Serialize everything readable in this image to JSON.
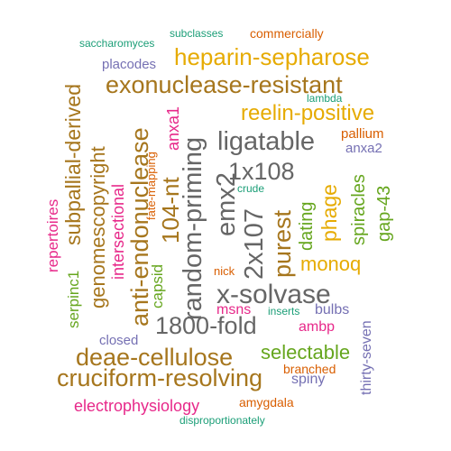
{
  "words": [
    {
      "text": "subclasses",
      "color": "#1b9e77",
      "rotated": false
    },
    {
      "text": "commercially",
      "color": "#d95f02",
      "rotated": false
    },
    {
      "text": "saccharomyces",
      "color": "#1b9e77",
      "rotated": false
    },
    {
      "text": "placodes",
      "color": "#7570b3",
      "rotated": false
    },
    {
      "text": "heparin-sepharose",
      "color": "#e6ab02",
      "rotated": false
    },
    {
      "text": "exonuclease-resistant",
      "color": "#a6761d",
      "rotated": false
    },
    {
      "text": "lambda",
      "color": "#1b9e77",
      "rotated": false
    },
    {
      "text": "reelin-positive",
      "color": "#e6ab02",
      "rotated": false
    },
    {
      "text": "pallium",
      "color": "#d95f02",
      "rotated": false
    },
    {
      "text": "ligatable",
      "color": "#666666",
      "rotated": false
    },
    {
      "text": "anxa2",
      "color": "#7570b3",
      "rotated": false
    },
    {
      "text": "1x108",
      "color": "#666666",
      "rotated": false
    },
    {
      "text": "crude",
      "color": "#1b9e77",
      "rotated": false
    },
    {
      "text": "monoq",
      "color": "#e6ab02",
      "rotated": false
    },
    {
      "text": "nick",
      "color": "#d95f02",
      "rotated": false
    },
    {
      "text": "x-solvase",
      "color": "#666666",
      "rotated": false
    },
    {
      "text": "msns",
      "color": "#e7298a",
      "rotated": false
    },
    {
      "text": "inserts",
      "color": "#1b9e77",
      "rotated": false
    },
    {
      "text": "bulbs",
      "color": "#7570b3",
      "rotated": false
    },
    {
      "text": "1800-fold",
      "color": "#666666",
      "rotated": false
    },
    {
      "text": "ambp",
      "color": "#e7298a",
      "rotated": false
    },
    {
      "text": "closed",
      "color": "#7570b3",
      "rotated": false
    },
    {
      "text": "deae-cellulose",
      "color": "#a6761d",
      "rotated": false
    },
    {
      "text": "selectable",
      "color": "#66a61e",
      "rotated": false
    },
    {
      "text": "cruciform-resolving",
      "color": "#a6761d",
      "rotated": false
    },
    {
      "text": "branched",
      "color": "#d95f02",
      "rotated": false
    },
    {
      "text": "spiny",
      "color": "#7570b3",
      "rotated": false
    },
    {
      "text": "electrophysiology",
      "color": "#e7298a",
      "rotated": false
    },
    {
      "text": "amygdala",
      "color": "#d95f02",
      "rotated": false
    },
    {
      "text": "disproportionately",
      "color": "#1b9e77",
      "rotated": false
    },
    {
      "text": "random-priming",
      "color": "#666666",
      "rotated": true
    },
    {
      "text": "anti-endonuclease",
      "color": "#a6761d",
      "rotated": true
    },
    {
      "text": "subpallial-derived",
      "color": "#a6761d",
      "rotated": true
    },
    {
      "text": "genomescopyright",
      "color": "#a6761d",
      "rotated": true
    },
    {
      "text": "intersectional",
      "color": "#e7298a",
      "rotated": true
    },
    {
      "text": "104-nt",
      "color": "#a6761d",
      "rotated": true
    },
    {
      "text": "anxa1",
      "color": "#e7298a",
      "rotated": true
    },
    {
      "text": "fate-mapping",
      "color": "#d95f02",
      "rotated": true
    },
    {
      "text": "emx2",
      "color": "#666666",
      "rotated": true
    },
    {
      "text": "2x107",
      "color": "#666666",
      "rotated": true
    },
    {
      "text": "purest",
      "color": "#a6761d",
      "rotated": true
    },
    {
      "text": "dating",
      "color": "#66a61e",
      "rotated": true
    },
    {
      "text": "phage",
      "color": "#e6ab02",
      "rotated": true
    },
    {
      "text": "spiracles",
      "color": "#66a61e",
      "rotated": true
    },
    {
      "text": "gap-43",
      "color": "#66a61e",
      "rotated": true
    },
    {
      "text": "repertoires",
      "color": "#e7298a",
      "rotated": true
    },
    {
      "text": "serpinc1",
      "color": "#66a61e",
      "rotated": true
    },
    {
      "text": "capsid",
      "color": "#66a61e",
      "rotated": true
    },
    {
      "text": "thirty-seven",
      "color": "#7570b3",
      "rotated": true
    }
  ]
}
